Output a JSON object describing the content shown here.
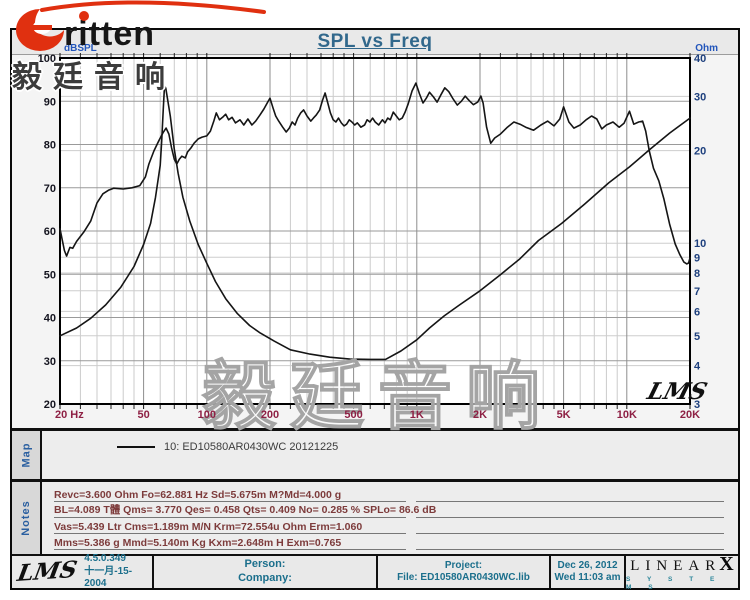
{
  "logo": {
    "brand": "ritten",
    "cjk": "毅廷音响"
  },
  "header": {
    "title": "SPL vs Freq"
  },
  "chart_data": {
    "type": "line",
    "title": "SPL vs Freq",
    "x_axis": {
      "label": "Hz",
      "scale": "log",
      "min": 20,
      "max": 20000,
      "ticks": [
        "20  Hz",
        "50",
        "100",
        "200",
        "500",
        "1K",
        "2K",
        "5K",
        "10K",
        "20K"
      ],
      "tick_values": [
        20,
        50,
        100,
        200,
        500,
        1000,
        2000,
        5000,
        10000,
        20000
      ]
    },
    "y_left": {
      "label": "dBSPL",
      "scale": "linear",
      "min": 20,
      "max": 100,
      "ticks": [
        100,
        90,
        80,
        70,
        60,
        50,
        40,
        30,
        20
      ]
    },
    "y_right": {
      "label": "Ohm",
      "scale": "log",
      "min": 3,
      "max": 40,
      "ticks": [
        40,
        30,
        20,
        10,
        9,
        8,
        7,
        6,
        5,
        4,
        3
      ]
    },
    "grid": true,
    "legend_position": "map-panel-below",
    "watermark": "毅廷音响",
    "plot_logo": "LMS",
    "series": [
      {
        "name": "10: ED10580AR0430WC 20121225 (SPL)",
        "axis": "left",
        "unit": "dBSPL",
        "points": [
          [
            20,
            60.5
          ],
          [
            21,
            55.5
          ],
          [
            21.5,
            54.2
          ],
          [
            22.3,
            56.2
          ],
          [
            23,
            56
          ],
          [
            24,
            57.6
          ],
          [
            26,
            59.8
          ],
          [
            28,
            62.3
          ],
          [
            30,
            66.5
          ],
          [
            32,
            68.6
          ],
          [
            34,
            69.4
          ],
          [
            36,
            69.9
          ],
          [
            40,
            69.7
          ],
          [
            44,
            70
          ],
          [
            48,
            70.5
          ],
          [
            51,
            72.5
          ],
          [
            53,
            75.5
          ],
          [
            56,
            78.5
          ],
          [
            59,
            80.8
          ],
          [
            62,
            82.8
          ],
          [
            64,
            83.8
          ],
          [
            66,
            82.4
          ],
          [
            68,
            79.2
          ],
          [
            70,
            76.6
          ],
          [
            72,
            75.5
          ],
          [
            74,
            76.6
          ],
          [
            76,
            77.3
          ],
          [
            79,
            76.9
          ],
          [
            81,
            78.3
          ],
          [
            84,
            79.2
          ],
          [
            87,
            80.3
          ],
          [
            91,
            81.3
          ],
          [
            95,
            81.7
          ],
          [
            100,
            82
          ],
          [
            104,
            83.1
          ],
          [
            108,
            85.4
          ],
          [
            111,
            87.3
          ],
          [
            115,
            85.7
          ],
          [
            119,
            86.3
          ],
          [
            123,
            87
          ],
          [
            127,
            85.7
          ],
          [
            132,
            86.3
          ],
          [
            137,
            85
          ],
          [
            144,
            85.7
          ],
          [
            150,
            84.5
          ],
          [
            157,
            85.9
          ],
          [
            164,
            84.5
          ],
          [
            171,
            85.4
          ],
          [
            179,
            86.8
          ],
          [
            187,
            88.2
          ],
          [
            195,
            89.8
          ],
          [
            200,
            90.7
          ],
          [
            207,
            88.4
          ],
          [
            213,
            86.6
          ],
          [
            220,
            85.4
          ],
          [
            230,
            84
          ],
          [
            239,
            82.9
          ],
          [
            247,
            83.8
          ],
          [
            255,
            85.2
          ],
          [
            263,
            84.5
          ],
          [
            271,
            86.1
          ],
          [
            280,
            87.3
          ],
          [
            289,
            88
          ],
          [
            300,
            86.6
          ],
          [
            313,
            85.4
          ],
          [
            322,
            86.1
          ],
          [
            332,
            86.8
          ],
          [
            345,
            88
          ],
          [
            356,
            90.3
          ],
          [
            366,
            91.9
          ],
          [
            377,
            89.6
          ],
          [
            388,
            87.3
          ],
          [
            400,
            85.7
          ],
          [
            412,
            85.2
          ],
          [
            424,
            86.1
          ],
          [
            437,
            85
          ],
          [
            450,
            84.3
          ],
          [
            463,
            84.7
          ],
          [
            477,
            85.7
          ],
          [
            491,
            85.2
          ],
          [
            506,
            84.5
          ],
          [
            521,
            85
          ],
          [
            542,
            84
          ],
          [
            564,
            84.5
          ],
          [
            580,
            85.7
          ],
          [
            598,
            85.2
          ],
          [
            616,
            86.1
          ],
          [
            634,
            85.2
          ],
          [
            659,
            84.5
          ],
          [
            686,
            85.7
          ],
          [
            706,
            85
          ],
          [
            727,
            86.1
          ],
          [
            748,
            85.7
          ],
          [
            773,
            87.5
          ],
          [
            799,
            86.6
          ],
          [
            825,
            85.7
          ],
          [
            852,
            86.1
          ],
          [
            880,
            87.5
          ],
          [
            910,
            89.4
          ],
          [
            950,
            92.4
          ],
          [
            990,
            94.2
          ],
          [
            1030,
            91.7
          ],
          [
            1070,
            89.6
          ],
          [
            1110,
            90.7
          ],
          [
            1150,
            92.1
          ],
          [
            1200,
            91
          ],
          [
            1250,
            89.8
          ],
          [
            1300,
            91.4
          ],
          [
            1360,
            93.1
          ],
          [
            1420,
            92.2
          ],
          [
            1490,
            90.5
          ],
          [
            1560,
            89.1
          ],
          [
            1630,
            90
          ],
          [
            1700,
            91.2
          ],
          [
            1780,
            90.1
          ],
          [
            1860,
            89.2
          ],
          [
            1950,
            89.8
          ],
          [
            2020,
            91.2
          ],
          [
            2070,
            89.6
          ],
          [
            2150,
            84
          ],
          [
            2250,
            80.3
          ],
          [
            2350,
            81.5
          ],
          [
            2500,
            82.4
          ],
          [
            2700,
            84
          ],
          [
            2900,
            85.2
          ],
          [
            3100,
            84.7
          ],
          [
            3300,
            84
          ],
          [
            3600,
            83.3
          ],
          [
            3900,
            84.5
          ],
          [
            4200,
            85.4
          ],
          [
            4500,
            84.3
          ],
          [
            4800,
            85.9
          ],
          [
            5000,
            88.7
          ],
          [
            5300,
            85.2
          ],
          [
            5600,
            83.8
          ],
          [
            6000,
            84.5
          ],
          [
            6400,
            85.7
          ],
          [
            6800,
            86.6
          ],
          [
            7200,
            85.9
          ],
          [
            7600,
            83.6
          ],
          [
            8000,
            84.5
          ],
          [
            8600,
            85.2
          ],
          [
            9200,
            84
          ],
          [
            9700,
            84.9
          ],
          [
            10300,
            87.7
          ],
          [
            10800,
            84.7
          ],
          [
            11400,
            85.2
          ],
          [
            11900,
            85.4
          ],
          [
            12300,
            83.1
          ],
          [
            12800,
            78.5
          ],
          [
            13400,
            74.5
          ],
          [
            14200,
            71.6
          ],
          [
            15000,
            67.5
          ],
          [
            16000,
            61.6
          ],
          [
            17000,
            57
          ],
          [
            17900,
            54.5
          ],
          [
            18700,
            52.8
          ],
          [
            19300,
            52.4
          ],
          [
            19700,
            52.6
          ],
          [
            20000,
            53.8
          ]
        ]
      },
      {
        "name": "10: ED10580AR0430WC 20121225 (Impedance)",
        "axis": "right",
        "unit": "Ohm",
        "points": [
          [
            20,
            5.0
          ],
          [
            24,
            5.3
          ],
          [
            28,
            5.7
          ],
          [
            33,
            6.3
          ],
          [
            39,
            7.2
          ],
          [
            45,
            8.4
          ],
          [
            50,
            9.9
          ],
          [
            54,
            11.6
          ],
          [
            57,
            14.1
          ],
          [
            60,
            17.9
          ],
          [
            61,
            21.5
          ],
          [
            62,
            27
          ],
          [
            62.9,
            32.4
          ],
          [
            63.8,
            31.9
          ],
          [
            65,
            29.5
          ],
          [
            67,
            25.9
          ],
          [
            70,
            20.2
          ],
          [
            73,
            16.9
          ],
          [
            77,
            14.1
          ],
          [
            83,
            11.8
          ],
          [
            91,
            9.9
          ],
          [
            100,
            8.6
          ],
          [
            110,
            7.5
          ],
          [
            123,
            6.6
          ],
          [
            140,
            5.9
          ],
          [
            160,
            5.4
          ],
          [
            180,
            5.1
          ],
          [
            210,
            4.8
          ],
          [
            250,
            4.5
          ],
          [
            310,
            4.36
          ],
          [
            385,
            4.26
          ],
          [
            480,
            4.2
          ],
          [
            600,
            4.19
          ],
          [
            710,
            4.19
          ],
          [
            840,
            4.46
          ],
          [
            1000,
            4.85
          ],
          [
            1150,
            5.3
          ],
          [
            1350,
            5.8
          ],
          [
            1600,
            6.3
          ],
          [
            2000,
            7.0
          ],
          [
            2500,
            7.9
          ],
          [
            3100,
            8.9
          ],
          [
            3800,
            10.2
          ],
          [
            4900,
            11.6
          ],
          [
            6300,
            13.4
          ],
          [
            8200,
            15.7
          ],
          [
            10300,
            17.7
          ],
          [
            12800,
            20.1
          ],
          [
            16000,
            22.8
          ],
          [
            20000,
            25.5
          ]
        ]
      }
    ]
  },
  "map": {
    "tab": "Map",
    "legend": "10: ED10580AR0430WC 20121225"
  },
  "notes": {
    "tab": "Notes",
    "lines": [
      "Revc=3.600 Ohm  Fo=62.881 Hz  Sd=5.675m M?Md=4.000 g",
      "BL=4.089 T體  Qms= 3.770  Qes= 0.458  Qts= 0.409  No= 0.285 %  SPLo= 86.6 dB",
      "Vas=5.439 Ltr  Cms=1.189m M/N  Krm=72.554u Ohm  Erm=1.060",
      "Mms=5.386 g  Mmd=5.140m Kg  Kxm=2.648m H  Exm=0.765"
    ]
  },
  "footer": {
    "lms_logo": "LMS",
    "version": "4.5.0.349",
    "version_date": "十一月-15-2004",
    "person_label": "Person:",
    "company_label": "Company:",
    "project_label": "Project:",
    "file_label": "File: ED10580AR0430WC.lib",
    "date": "Dec 26, 2012",
    "time": "Wed 11:03 am",
    "brand": "LINEAR",
    "brand_x": "X",
    "brand_sub": "S   Y   S   T   E   M   S"
  },
  "colors": {
    "title": "#31688c",
    "freq_labels": "#8e2044",
    "left_labels": "#14141f",
    "right_labels": "#1d3f7d",
    "axis_title": "#2255bb",
    "curve": "#151515",
    "brand_red": "#e03010",
    "notes_text": "#7d3b3b",
    "footer_teal": "#1b6f8c"
  }
}
